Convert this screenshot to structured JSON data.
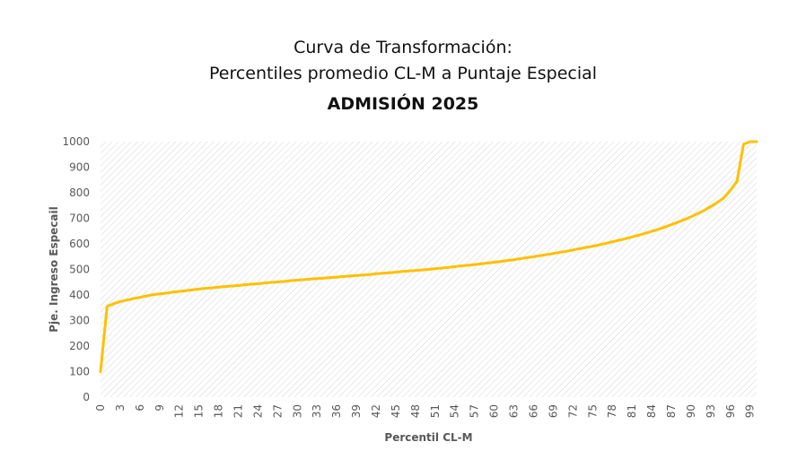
{
  "titles": {
    "line1": "Curva de Transformación:",
    "line2": "Percentiles promedio CL-M a Puntaje Especial",
    "line3": "ADMISIÓN 2025"
  },
  "chart_data": {
    "type": "line",
    "title": "Curva de Transformación: Percentiles promedio CL-M a Puntaje Especial",
    "subtitle": "ADMISIÓN 2025",
    "xlabel": "Percentil CL-M",
    "ylabel": "Pje. Ingreso Especail",
    "xlim": [
      0,
      100
    ],
    "ylim": [
      0,
      1000
    ],
    "y_ticks": [
      0,
      100,
      200,
      300,
      400,
      500,
      600,
      700,
      800,
      900,
      1000
    ],
    "x_ticks": [
      0,
      3,
      6,
      9,
      12,
      15,
      18,
      21,
      24,
      27,
      30,
      33,
      36,
      39,
      42,
      45,
      48,
      51,
      54,
      57,
      60,
      63,
      66,
      69,
      72,
      75,
      78,
      81,
      84,
      87,
      90,
      93,
      96,
      99
    ],
    "grid": "diagonal hatch",
    "series_color": "#FFC000",
    "series": [
      {
        "x": [
          0,
          1,
          2,
          3,
          4,
          5,
          6,
          7,
          8,
          9,
          10,
          11,
          12,
          13,
          14,
          15,
          16,
          17,
          18,
          19,
          20,
          21,
          22,
          23,
          24,
          25,
          26,
          27,
          28,
          29,
          30,
          31,
          32,
          33,
          34,
          35,
          36,
          37,
          38,
          39,
          40,
          41,
          42,
          43,
          44,
          45,
          46,
          47,
          48,
          49,
          50,
          51,
          52,
          53,
          54,
          55,
          56,
          57,
          58,
          59,
          60,
          61,
          62,
          63,
          64,
          65,
          66,
          67,
          68,
          69,
          70,
          71,
          72,
          73,
          74,
          75,
          76,
          77,
          78,
          79,
          80,
          81,
          82,
          83,
          84,
          85,
          86,
          87,
          88,
          89,
          90,
          91,
          92,
          93,
          94,
          95,
          96,
          97,
          98,
          99,
          100
        ],
        "values": [
          100,
          355,
          366,
          374,
          380,
          386,
          391,
          396,
          401,
          404,
          407,
          411,
          414,
          417,
          420,
          423,
          426,
          428,
          431,
          433,
          435,
          437,
          440,
          442,
          444,
          447,
          449,
          451,
          453,
          456,
          458,
          460,
          462,
          464,
          466,
          468,
          470,
          472,
          474,
          476,
          478,
          480,
          483,
          485,
          487,
          489,
          492,
          494,
          496,
          498,
          500,
          503,
          505,
          508,
          511,
          514,
          516,
          519,
          522,
          525,
          528,
          531,
          535,
          538,
          542,
          546,
          550,
          554,
          558,
          562,
          567,
          571,
          576,
          581,
          586,
          591,
          596,
          602,
          608,
          614,
          620,
          627,
          634,
          641,
          649,
          657,
          666,
          675,
          685,
          695,
          706,
          718,
          731,
          746,
          762,
          780,
          810,
          845,
          990,
          1000,
          1000
        ]
      }
    ]
  }
}
